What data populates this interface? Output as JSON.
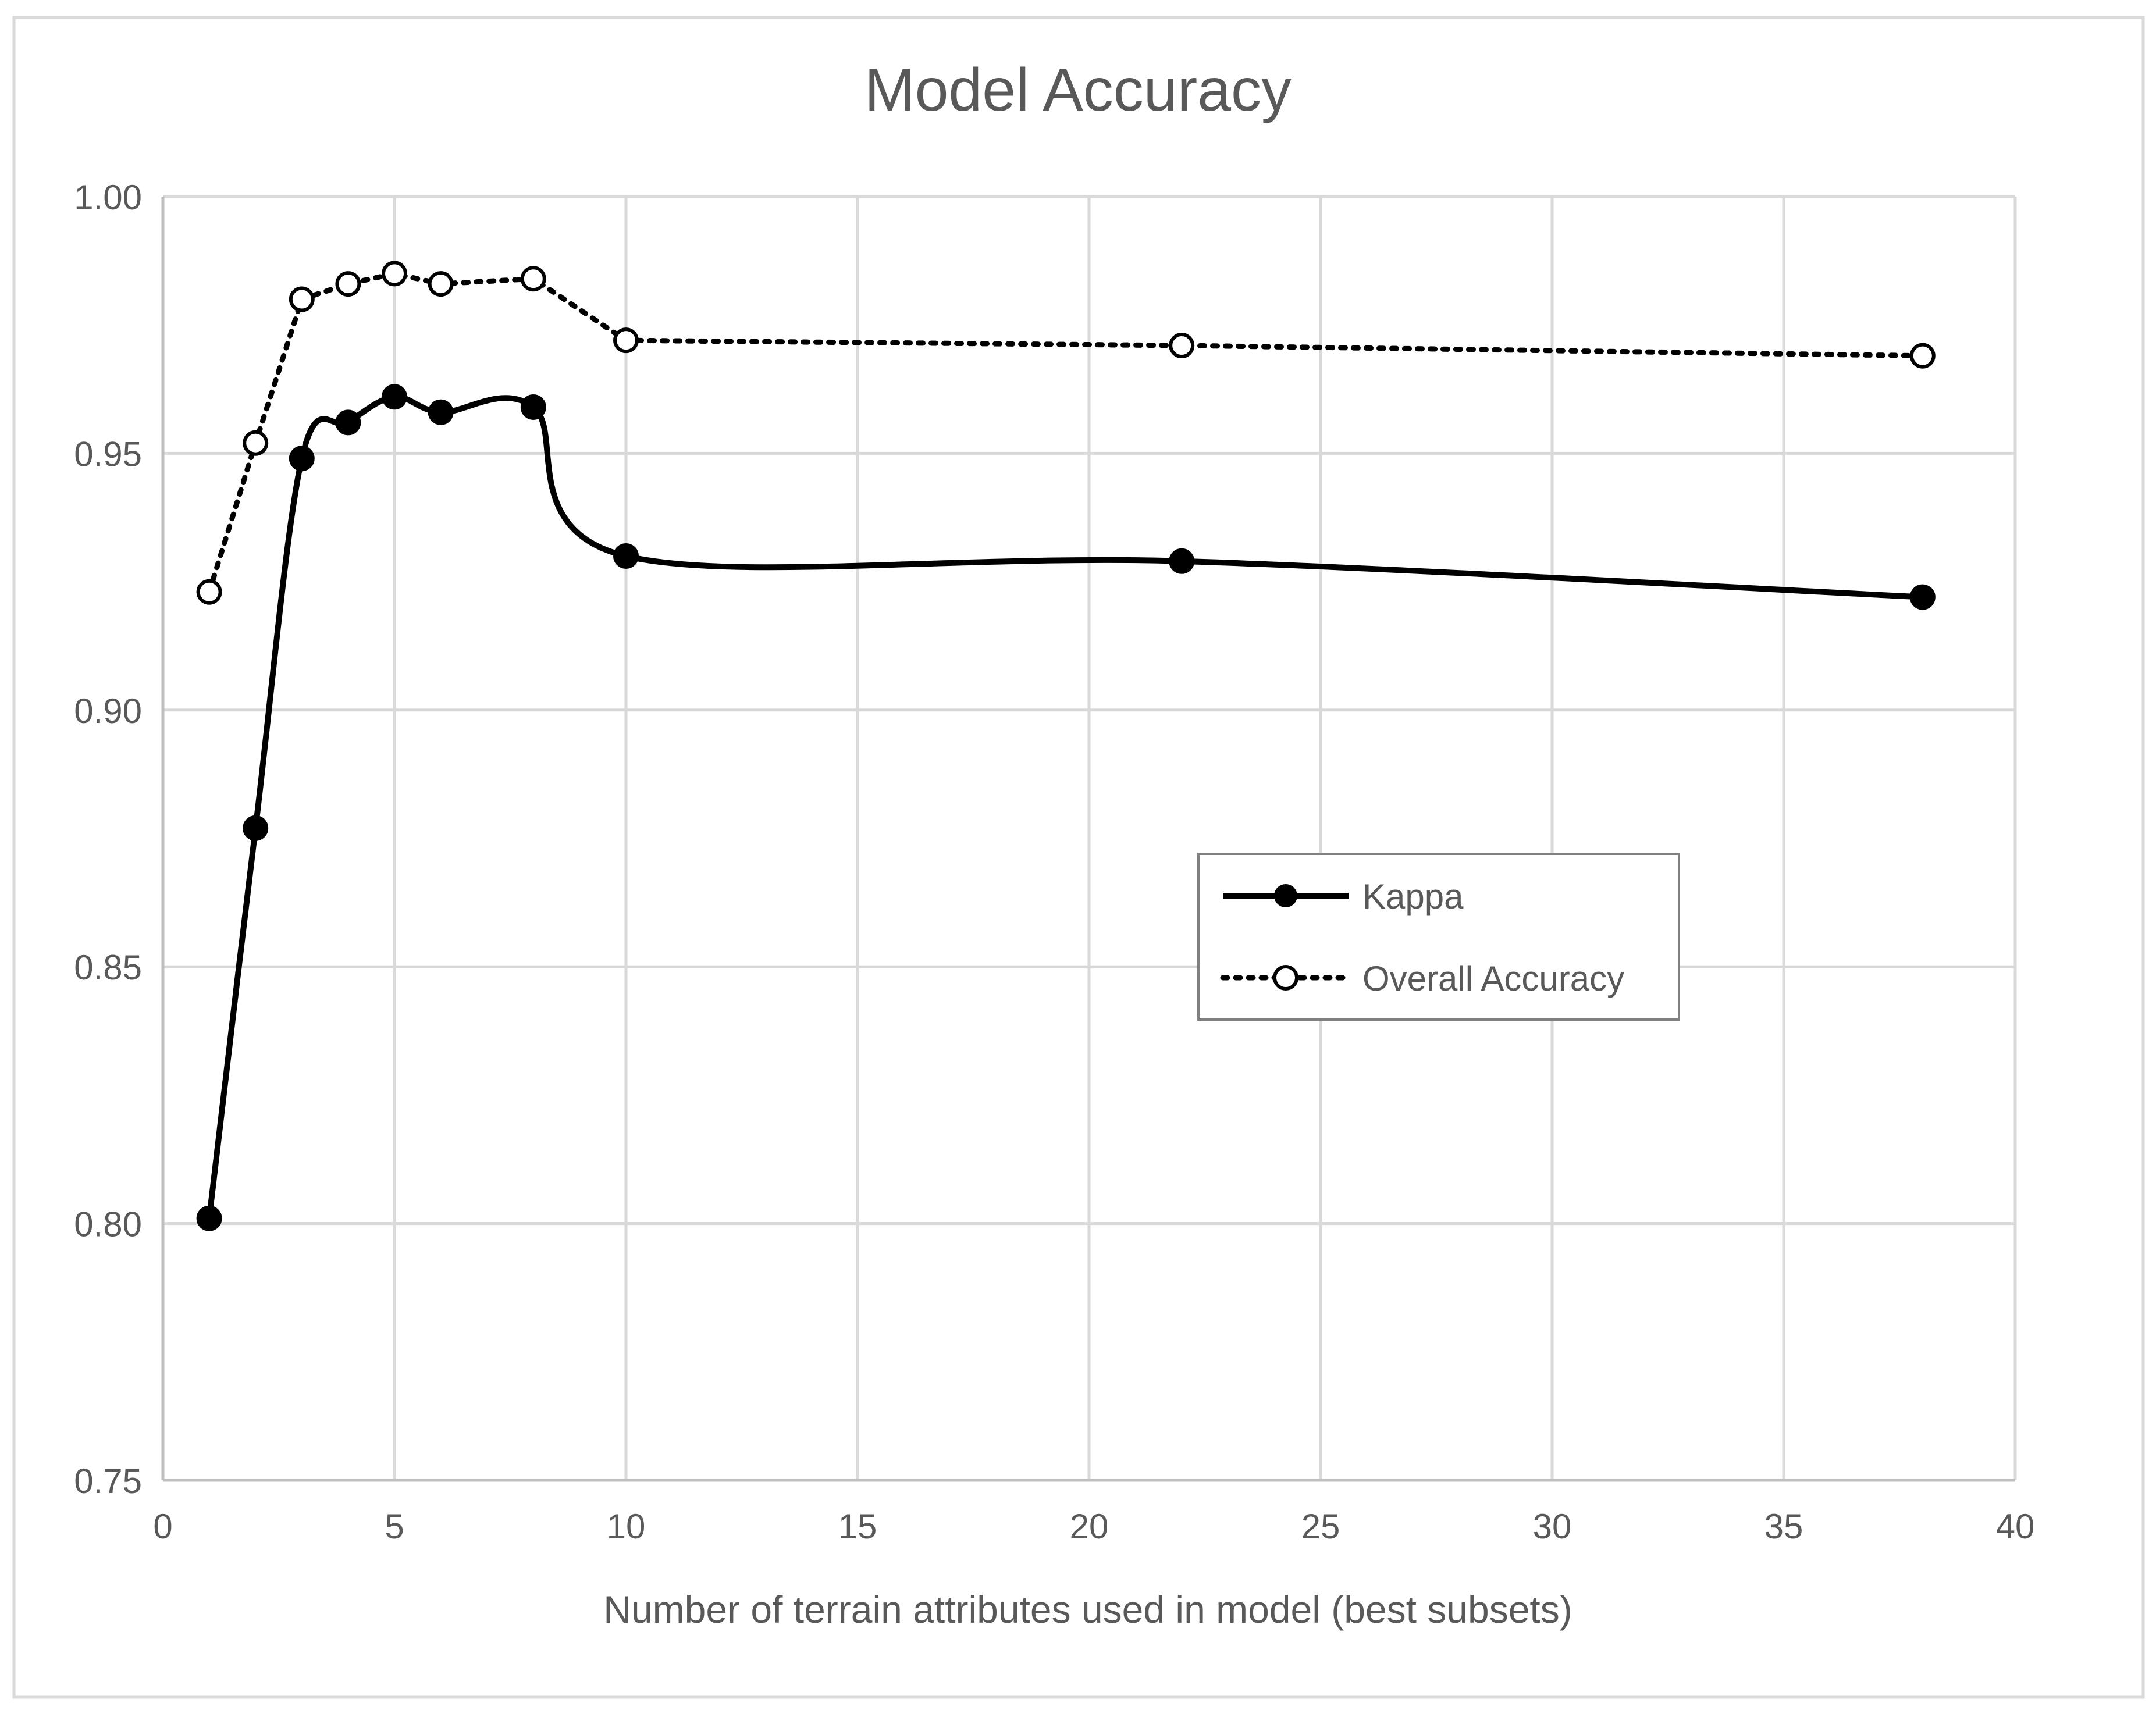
{
  "chart_data": {
    "type": "line",
    "title": "Model Accuracy",
    "xlabel": "Number of terrain attributes used in model (best subsets)",
    "ylabel": "",
    "xlim": [
      0,
      40
    ],
    "ylim": [
      0.75,
      1.0
    ],
    "x_ticks": [
      0,
      5,
      10,
      15,
      20,
      25,
      30,
      35,
      40
    ],
    "x_tick_labels": [
      "0",
      "5",
      "10",
      "15",
      "20",
      "25",
      "30",
      "35",
      "40"
    ],
    "y_ticks": [
      0.75,
      0.8,
      0.85,
      0.9,
      0.95,
      1.0
    ],
    "y_tick_labels": [
      "0.75",
      "0.80",
      "0.85",
      "0.90",
      "0.95",
      "1.00"
    ],
    "grid": true,
    "legend_position": "center-right",
    "series": [
      {
        "name": "Kappa",
        "style": "solid",
        "marker": "filled-circle",
        "color": "#000000",
        "x": [
          1,
          2,
          3,
          4,
          5,
          6,
          8,
          10,
          22,
          38
        ],
        "y": [
          0.801,
          0.877,
          0.949,
          0.956,
          0.961,
          0.958,
          0.959,
          0.93,
          0.929,
          0.922
        ]
      },
      {
        "name": "Overall Accuracy",
        "style": "dotted",
        "marker": "open-circle",
        "color": "#000000",
        "x": [
          1,
          2,
          3,
          4,
          5,
          6,
          8,
          10,
          22,
          38
        ],
        "y": [
          0.923,
          0.952,
          0.98,
          0.983,
          0.985,
          0.983,
          0.984,
          0.972,
          0.971,
          0.969
        ]
      }
    ]
  }
}
